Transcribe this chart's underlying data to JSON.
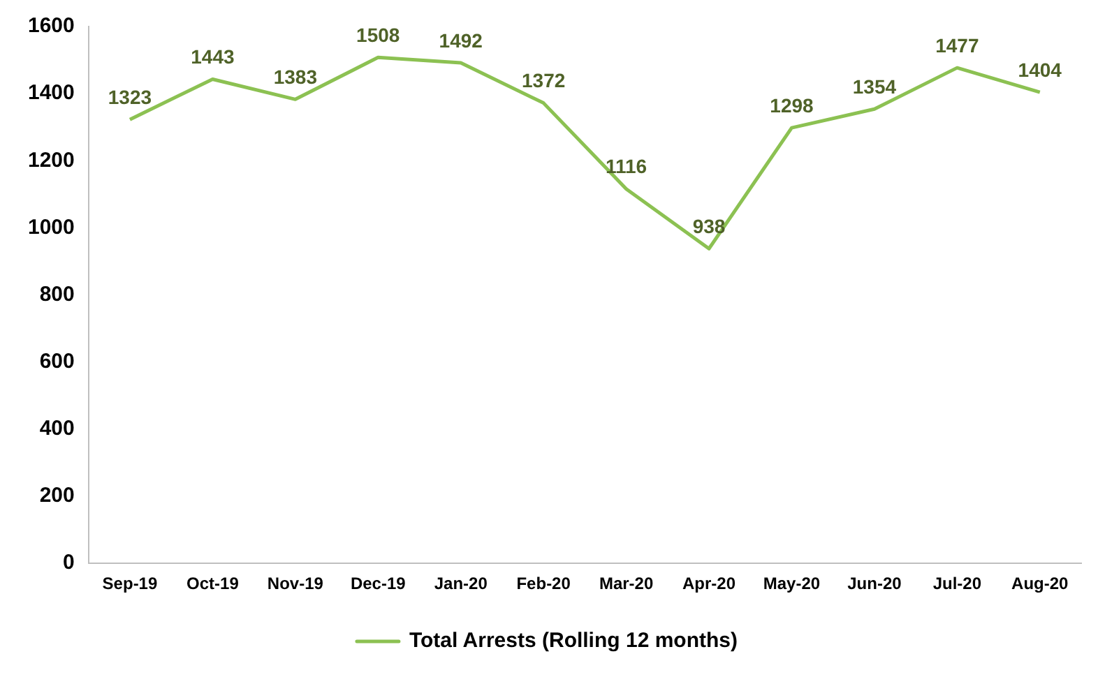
{
  "chart_data": {
    "type": "line",
    "categories": [
      "Sep-19",
      "Oct-19",
      "Nov-19",
      "Dec-19",
      "Jan-20",
      "Feb-20",
      "Mar-20",
      "Apr-20",
      "May-20",
      "Jun-20",
      "Jul-20",
      "Aug-20"
    ],
    "series": [
      {
        "name": "Total Arrests (Rolling 12 months)",
        "color": "#8cc152",
        "values": [
          1323,
          1443,
          1383,
          1508,
          1492,
          1372,
          1116,
          938,
          1298,
          1354,
          1477,
          1404
        ]
      }
    ],
    "ylim": [
      0,
      1600
    ],
    "yticks": [
      0,
      200,
      400,
      600,
      800,
      1000,
      1200,
      1400,
      1600
    ],
    "grid": false,
    "legend": "bottom",
    "marker": "none",
    "line_style": "solid",
    "data_labels": true
  }
}
